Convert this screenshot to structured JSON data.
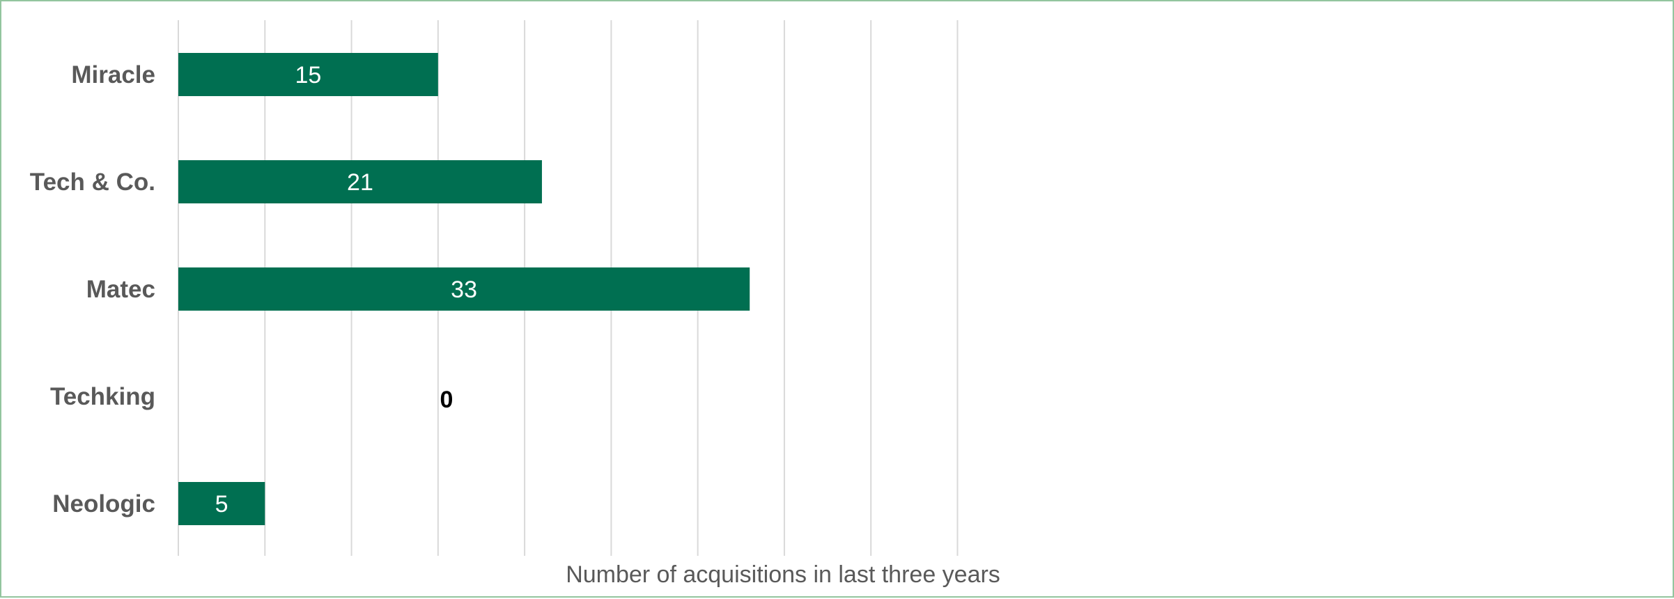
{
  "chart_data": {
    "type": "bar",
    "orientation": "horizontal",
    "categories": [
      "Miracle",
      "Tech & Co.",
      "Matec",
      "Techking",
      "Neologic"
    ],
    "values": [
      15,
      21,
      33,
      0,
      5
    ],
    "title": "",
    "xlabel": "Number of acquisitions in last three years",
    "ylabel": "",
    "xlim": [
      0,
      45
    ],
    "x_grid_step": 5,
    "grid": true,
    "legend": "none",
    "bar_color": "#006f51",
    "data_labels": [
      "15",
      "21",
      "33",
      "0",
      "5"
    ]
  }
}
